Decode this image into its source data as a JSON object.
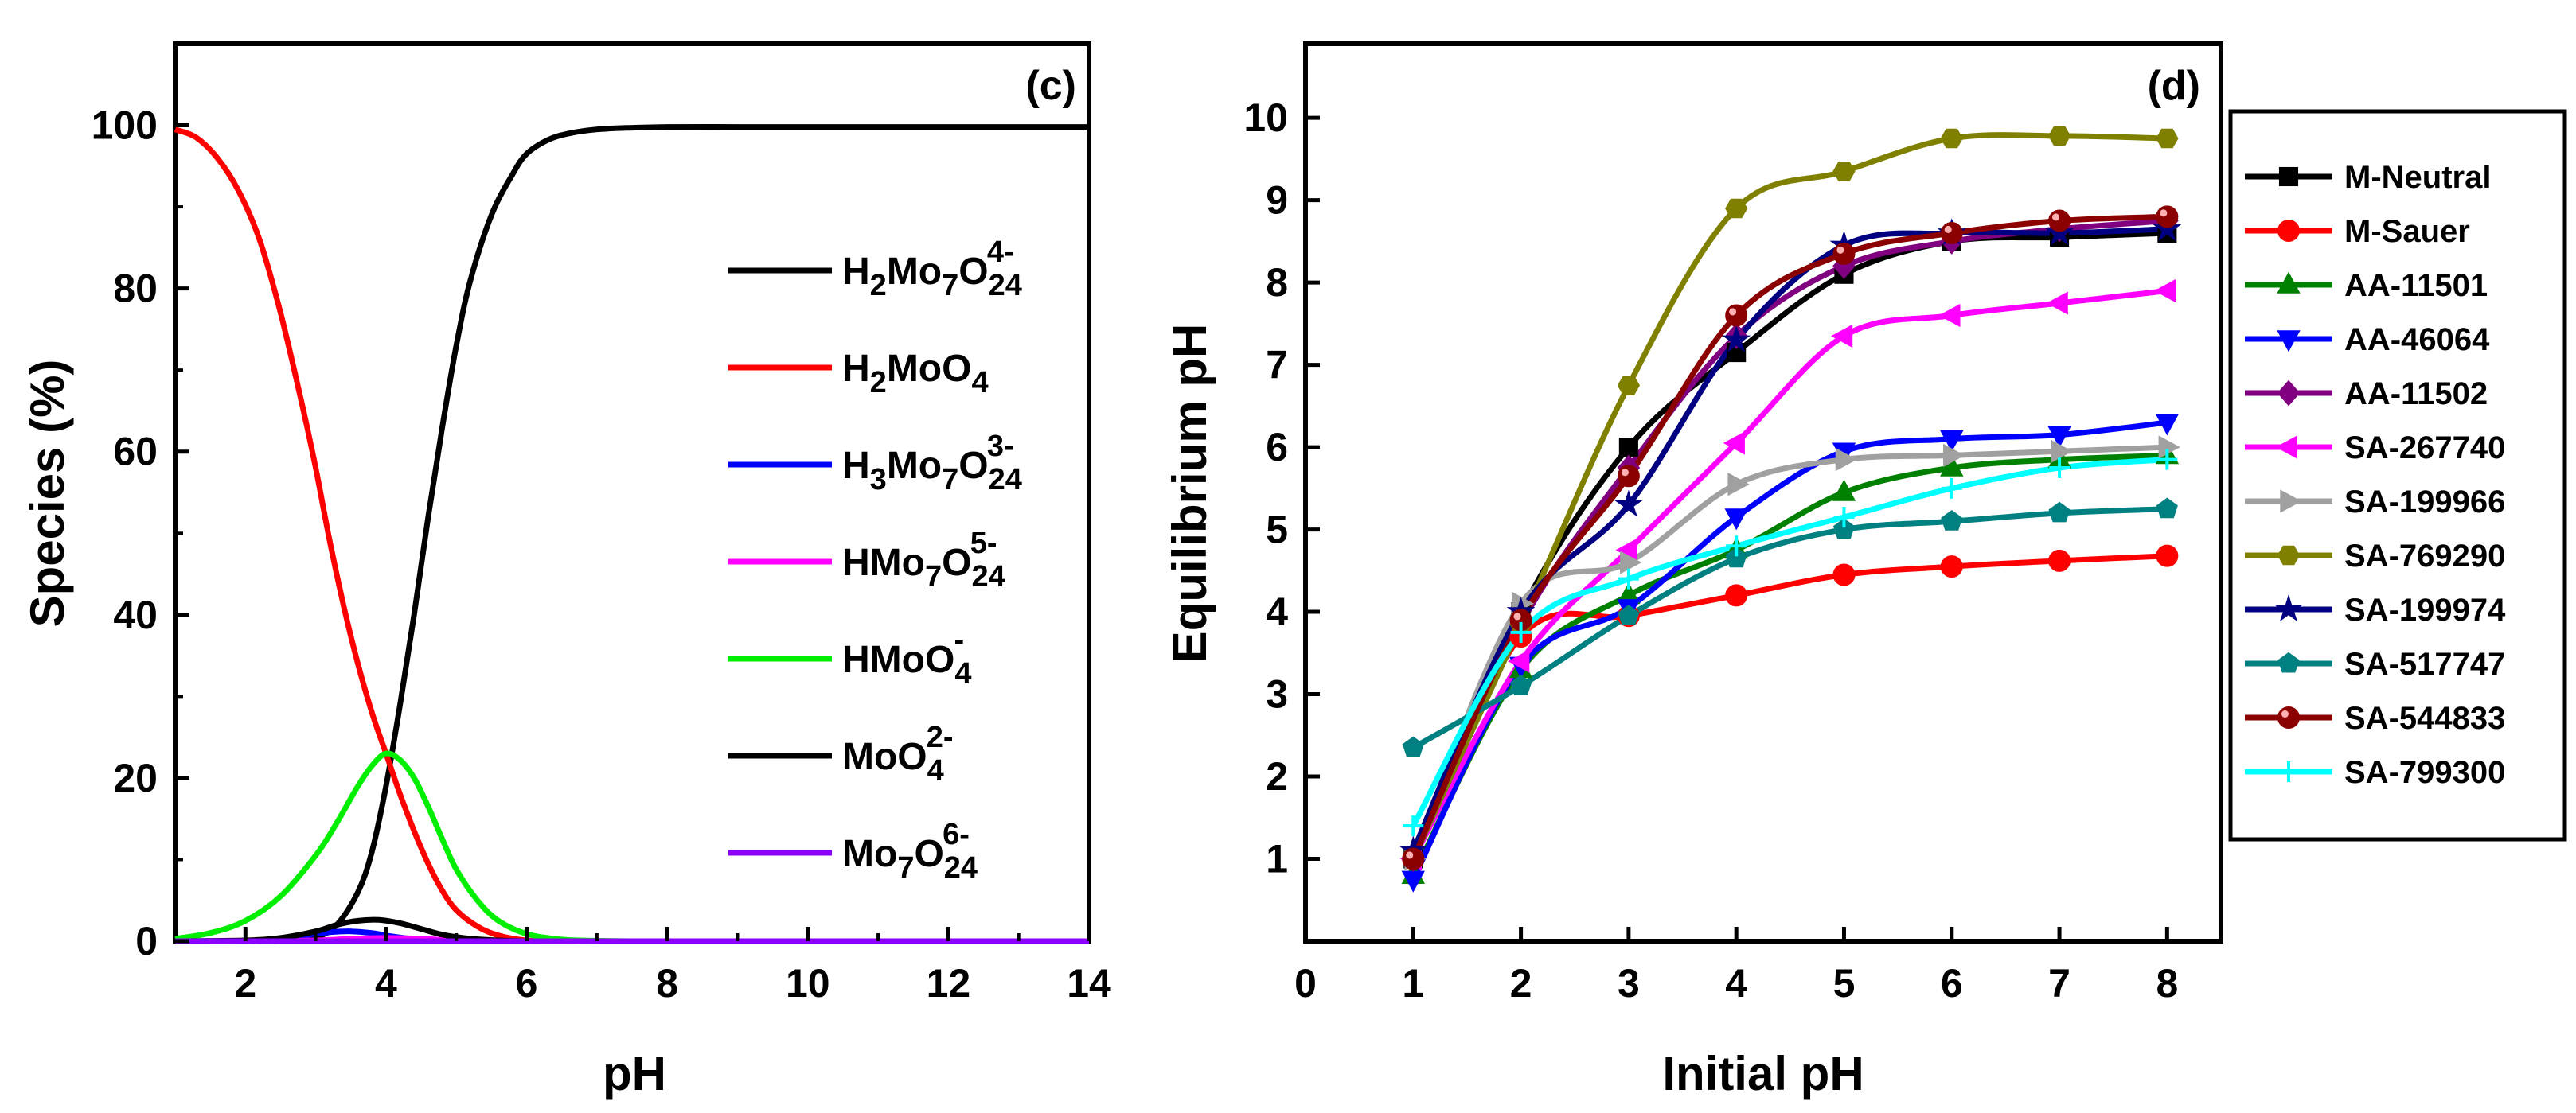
{
  "chart_data": [
    {
      "type": "line",
      "panel_label": "(c)",
      "xlabel": "pH",
      "ylabel": "Species (%)",
      "xlim": [
        1,
        14
      ],
      "ylim": [
        0,
        110
      ],
      "xticks": [
        "2",
        "4",
        "6",
        "8",
        "10",
        "12",
        "14"
      ],
      "yticks": [
        "0",
        "20",
        "40",
        "60",
        "80",
        "100"
      ],
      "grid": false,
      "legend_position": "right",
      "series": [
        {
          "name": "H2Mo7O24 4-",
          "label_main": "H",
          "label_parts": [
            "2",
            "Mo",
            "7",
            "O",
            "24"
          ],
          "charge": "4-",
          "color": "#000000",
          "x": [
            1,
            1.5,
            2,
            2.5,
            3,
            3.3,
            3.6,
            3.8,
            4,
            4.2,
            4.4,
            4.6,
            4.8,
            5,
            5.2,
            5.5,
            5.8,
            6,
            6.3,
            6.6,
            7,
            7.5,
            8,
            9,
            10,
            12,
            14
          ],
          "y": [
            0,
            0,
            0,
            0,
            0.5,
            2,
            6,
            11,
            19,
            29,
            40,
            52,
            63,
            73,
            81,
            89,
            94,
            96.5,
            98.2,
            99,
            99.5,
            99.7,
            99.8,
            99.8,
            99.8,
            99.8,
            99.8
          ]
        },
        {
          "name": "H2MoO4",
          "color": "#ff0000",
          "x": [
            1,
            1.3,
            1.6,
            1.9,
            2.2,
            2.5,
            2.8,
            3,
            3.2,
            3.4,
            3.6,
            3.8,
            4,
            4.2,
            4.4,
            4.6,
            4.8,
            5,
            5.3,
            5.6,
            6,
            6.5,
            7,
            8,
            10,
            14
          ],
          "y": [
            99.5,
            98.5,
            96,
            92,
            86,
            77,
            66,
            58,
            49,
            41,
            34,
            28,
            23,
            18,
            13.5,
            9.5,
            6.2,
            3.8,
            1.8,
            0.7,
            0.1,
            0,
            0,
            0,
            0,
            0
          ]
        },
        {
          "name": "H3Mo7O24 3-",
          "color": "#0000ff",
          "x": [
            1,
            2,
            2.5,
            3,
            3.2,
            3.5,
            3.8,
            4,
            4.3,
            4.6,
            5,
            6,
            8,
            14
          ],
          "y": [
            0,
            0.05,
            0.3,
            0.9,
            1.1,
            1.2,
            1.0,
            0.7,
            0.35,
            0.12,
            0.03,
            0,
            0,
            0
          ]
        },
        {
          "name": "HMo7O24 5-",
          "color": "#ff00ff",
          "x": [
            1,
            2,
            3,
            3.5,
            4,
            4.5,
            5,
            6,
            8,
            14
          ],
          "y": [
            0,
            0,
            0.1,
            0.3,
            0.4,
            0.3,
            0.1,
            0,
            0,
            0
          ]
        },
        {
          "name": "HMoO4-",
          "color": "#00ee00",
          "x": [
            1,
            1.5,
            2,
            2.5,
            3,
            3.3,
            3.6,
            3.8,
            4,
            4.2,
            4.4,
            4.6,
            4.8,
            5,
            5.3,
            5.6,
            6,
            6.5,
            7,
            7.5,
            8,
            10,
            14
          ],
          "y": [
            0.3,
            1,
            2.5,
            5.5,
            10.5,
            14.5,
            19,
            21.5,
            23,
            22.2,
            20,
            16.5,
            12.5,
            8.8,
            5,
            2.5,
            0.9,
            0.2,
            0.05,
            0,
            0,
            0,
            0
          ]
        },
        {
          "name": "MoO4 2-",
          "color": "#000000",
          "x": [
            1,
            2,
            2.5,
            3,
            3.3,
            3.6,
            3.9,
            4.2,
            4.5,
            4.8,
            5.2,
            5.6,
            6,
            7,
            14
          ],
          "y": [
            0,
            0.1,
            0.4,
            1.2,
            2,
            2.5,
            2.6,
            2.2,
            1.5,
            0.8,
            0.3,
            0.1,
            0,
            0,
            0
          ]
        },
        {
          "name": "Mo7O24 6-",
          "color": "#8b00ff",
          "x": [
            1,
            14
          ],
          "y": [
            0,
            0
          ]
        }
      ],
      "legend": [
        {
          "main": "H",
          "sub1": "2",
          "mid": "Mo",
          "sub2": "7",
          "o": "O",
          "sub3": "24",
          "sup": "4-",
          "color": "#000000"
        },
        {
          "main": "H",
          "sub1": "2",
          "mid": "MoO",
          "sub2": "4",
          "color": "#ff0000"
        },
        {
          "main": "H",
          "sub1": "3",
          "mid": "Mo",
          "sub2": "7",
          "o": "O",
          "sub3": "24",
          "sup": "3-",
          "color": "#0000ff"
        },
        {
          "main": "HMo",
          "sub1": "7",
          "mid": "O",
          "sub2": "24",
          "sup": "5-",
          "color": "#ff00ff"
        },
        {
          "main": "HMoO",
          "sub1": "4",
          "sup": "-",
          "color": "#00ee00"
        },
        {
          "main": "MoO",
          "sub1": "4",
          "sup": "2-",
          "color": "#000000"
        },
        {
          "main": "Mo",
          "sub1": "7",
          "mid": "O",
          "sub2": "24",
          "sup": "6-",
          "color": "#8b00ff"
        }
      ]
    },
    {
      "type": "line",
      "panel_label": "(d)",
      "xlabel": "Initial pH",
      "ylabel": "Equilibrium pH",
      "xlim": [
        0,
        8.5
      ],
      "ylim": [
        0,
        10.9
      ],
      "xticks": [
        "0",
        "1",
        "2",
        "3",
        "4",
        "5",
        "6",
        "7",
        "8"
      ],
      "yticks": [
        "1",
        "2",
        "3",
        "4",
        "5",
        "6",
        "7",
        "8",
        "9",
        "10"
      ],
      "grid": false,
      "legend_position": "right-outside",
      "x": [
        1,
        2,
        3,
        4,
        5,
        6,
        7,
        8
      ],
      "series": [
        {
          "name": "M-Neutral",
          "color": "#000000",
          "marker": "square",
          "values": [
            1.0,
            4.0,
            6.0,
            7.15,
            8.1,
            8.5,
            8.55,
            8.6
          ]
        },
        {
          "name": "M-Sauer",
          "color": "#ff0000",
          "marker": "circle",
          "values": [
            1.0,
            3.7,
            3.95,
            4.2,
            4.45,
            4.55,
            4.62,
            4.68
          ]
        },
        {
          "name": "AA-11501",
          "color": "#008000",
          "marker": "triangle-up",
          "values": [
            0.8,
            3.3,
            4.2,
            4.75,
            5.45,
            5.75,
            5.85,
            5.9
          ]
        },
        {
          "name": "AA-46064",
          "color": "#0000ff",
          "marker": "triangle-down",
          "values": [
            0.75,
            3.35,
            4.05,
            5.15,
            5.95,
            6.1,
            6.15,
            6.3
          ]
        },
        {
          "name": "AA-11502",
          "color": "#800080",
          "marker": "diamond",
          "values": [
            1.0,
            3.85,
            5.75,
            7.35,
            8.2,
            8.5,
            8.65,
            8.75
          ]
        },
        {
          "name": "SA-267740",
          "color": "#ff00ff",
          "marker": "triangle-left",
          "values": [
            1.0,
            3.4,
            4.75,
            6.05,
            7.35,
            7.6,
            7.75,
            7.9
          ]
        },
        {
          "name": "SA-199966",
          "color": "#a0a0a0",
          "marker": "triangle-right",
          "values": [
            1.0,
            4.1,
            4.6,
            5.55,
            5.85,
            5.9,
            5.95,
            6.0
          ]
        },
        {
          "name": "SA-769290",
          "color": "#808000",
          "marker": "hexagon",
          "values": [
            1.0,
            3.85,
            6.75,
            8.9,
            9.35,
            9.75,
            9.78,
            9.75
          ]
        },
        {
          "name": "SA-199974",
          "color": "#000080",
          "marker": "star",
          "values": [
            1.1,
            4.0,
            5.3,
            7.3,
            8.45,
            8.6,
            8.6,
            8.65
          ]
        },
        {
          "name": "SA-517747",
          "color": "#008080",
          "marker": "pentagon",
          "values": [
            2.35,
            3.1,
            3.95,
            4.65,
            5.0,
            5.1,
            5.2,
            5.25
          ]
        },
        {
          "name": "SA-544833",
          "color": "#8b0000",
          "marker": "ball",
          "values": [
            1.0,
            3.9,
            5.65,
            7.6,
            8.35,
            8.6,
            8.75,
            8.8
          ]
        },
        {
          "name": "SA-799300",
          "color": "#00ffff",
          "marker": "plus",
          "values": [
            1.4,
            3.75,
            4.4,
            4.8,
            5.15,
            5.5,
            5.75,
            5.85
          ]
        }
      ]
    }
  ]
}
